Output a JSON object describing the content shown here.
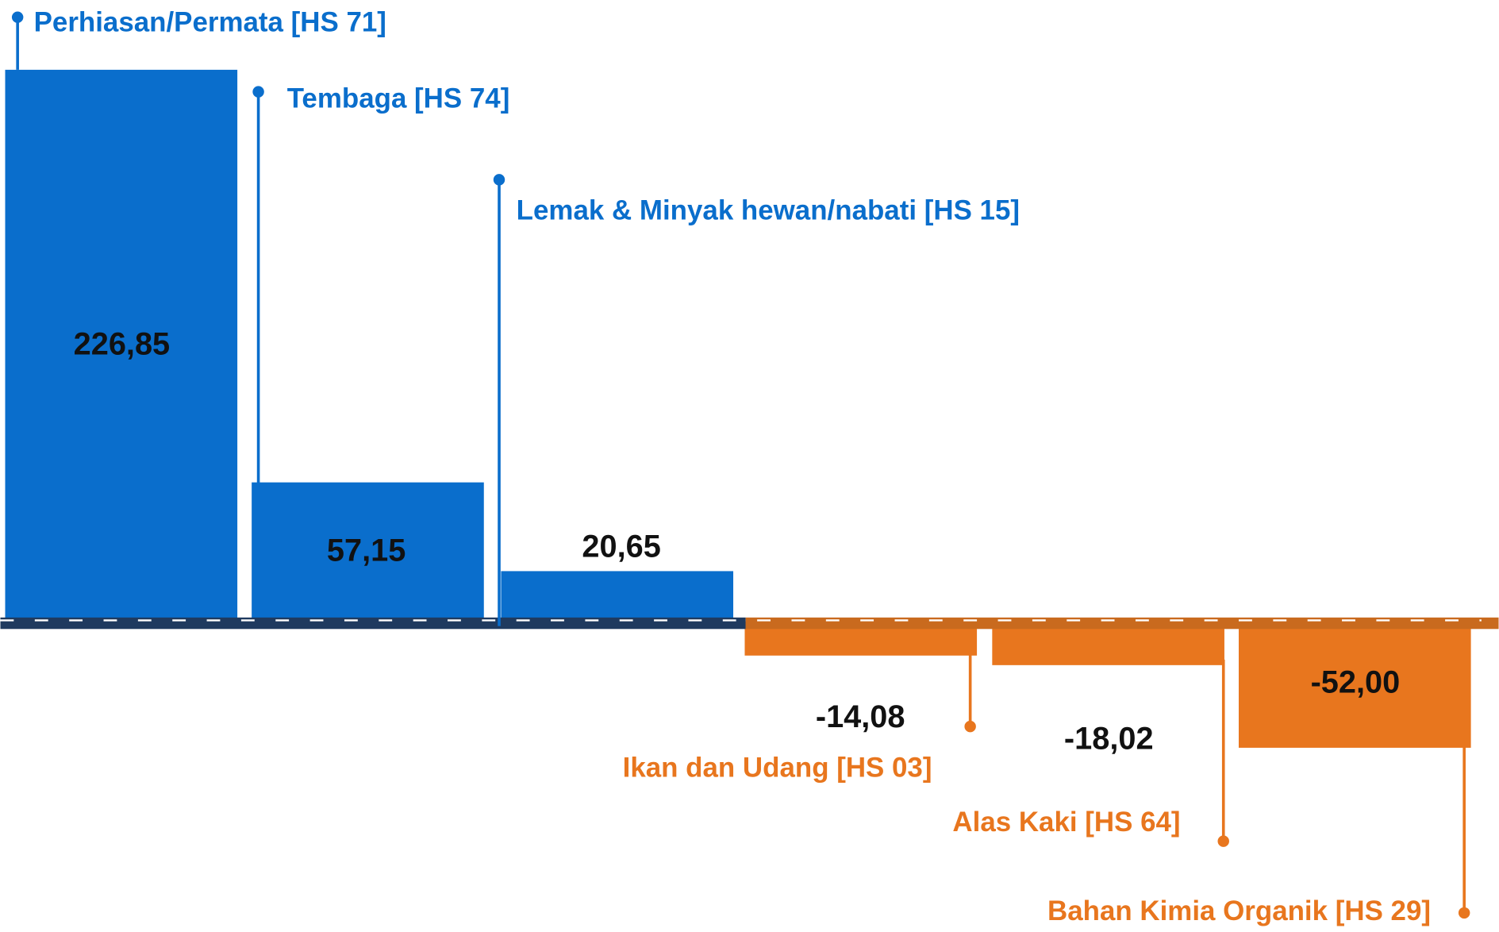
{
  "chart_data": {
    "type": "bar",
    "categories": [
      "Perhiasan/Permata [HS 71]",
      "Tembaga [HS 74]",
      "Lemak & Minyak hewan/nabati [HS 15]",
      "Ikan dan Udang [HS 03]",
      "Alas Kaki [HS 64]",
      "Bahan Kimia Organik [HS 29]"
    ],
    "values": [
      226.85,
      57.15,
      20.65,
      -14.08,
      -18.02,
      -52.0
    ],
    "value_labels": [
      "226,85",
      "57,15",
      "20,65",
      "-14,08",
      "-18,02",
      "-52,00"
    ],
    "colors": [
      "#0a6ecc",
      "#0a6ecc",
      "#0a6ecc",
      "#e8761e",
      "#e8761e",
      "#e8761e"
    ]
  }
}
